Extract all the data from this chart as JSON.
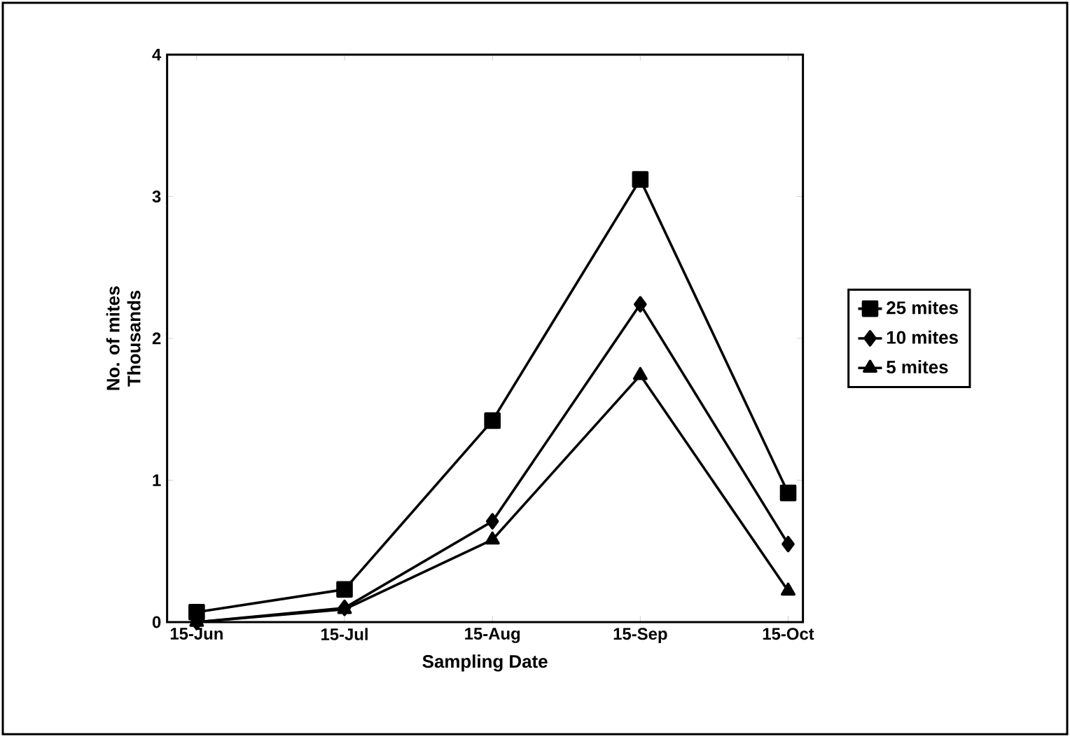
{
  "chart_data": {
    "type": "line",
    "xlabel": "Sampling Date",
    "ylabel": "No. of mites",
    "annotations": [
      "Thousands"
    ],
    "categories": [
      "15-Jun",
      "15-Jul",
      "15-Aug",
      "15-Sep",
      "15-Oct"
    ],
    "series": [
      {
        "name": "25 mites",
        "color": "#000000",
        "marker": "square",
        "values": [
          0.07,
          0.23,
          1.42,
          3.12,
          0.91
        ]
      },
      {
        "name": "10 mites",
        "color": "#000000",
        "marker": "diamond",
        "values": [
          0.0,
          0.1,
          0.71,
          2.24,
          0.55
        ]
      },
      {
        "name": "5 mites",
        "color": "#000000",
        "marker": "triangle",
        "values": [
          0.0,
          0.09,
          0.58,
          1.74,
          0.22
        ]
      }
    ],
    "ylim": [
      0,
      4
    ],
    "yticks": [
      0,
      1,
      2,
      3,
      4
    ],
    "legend": "right",
    "line_style": "solid"
  }
}
